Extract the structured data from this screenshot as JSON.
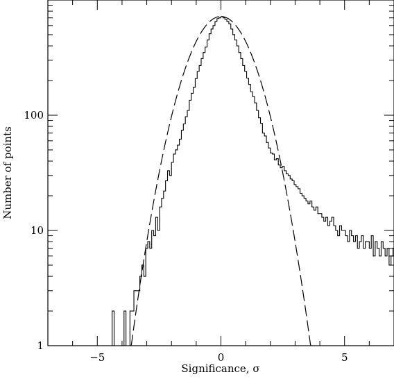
{
  "chart_data": {
    "type": "histogram-log",
    "title": "",
    "xlabel": "Significance, σ",
    "ylabel": "Number of points",
    "xlim": [
      -7,
      7
    ],
    "ylim": [
      1,
      1000
    ],
    "yscale": "log",
    "grid": false,
    "x_ticks": [
      {
        "value": -5,
        "label": "−5"
      },
      {
        "value": 0,
        "label": "0"
      },
      {
        "value": 5,
        "label": "5"
      }
    ],
    "y_ticks": [
      {
        "value": 1,
        "label": "1"
      },
      {
        "value": 10,
        "label": "10"
      },
      {
        "value": 100,
        "label": "100"
      }
    ],
    "series": [
      {
        "style": "histogram-step",
        "color": "#000000",
        "bin_width": 0.08,
        "x": [
          -4.4,
          -4.32,
          -4.24,
          -4.16,
          -4.08,
          -4.0,
          -3.92,
          -3.84,
          -3.76,
          -3.68,
          -3.6,
          -3.52,
          -3.44,
          -3.36,
          -3.28,
          -3.2,
          -3.12,
          -3.04,
          -2.96,
          -2.88,
          -2.8,
          -2.72,
          -2.64,
          -2.56,
          -2.48,
          -2.4,
          -2.32,
          -2.24,
          -2.16,
          -2.08,
          -2.0,
          -1.92,
          -1.84,
          -1.76,
          -1.68,
          -1.6,
          -1.52,
          -1.44,
          -1.36,
          -1.28,
          -1.2,
          -1.12,
          -1.04,
          -0.96,
          -0.88,
          -0.8,
          -0.72,
          -0.64,
          -0.56,
          -0.48,
          -0.4,
          -0.32,
          -0.24,
          -0.16,
          -0.08,
          0.0,
          0.08,
          0.16,
          0.24,
          0.32,
          0.4,
          0.48,
          0.56,
          0.64,
          0.72,
          0.8,
          0.88,
          0.96,
          1.04,
          1.12,
          1.2,
          1.28,
          1.36,
          1.44,
          1.52,
          1.6,
          1.68,
          1.76,
          1.84,
          1.92,
          2.0,
          2.08,
          2.16,
          2.24,
          2.32,
          2.4,
          2.48,
          2.56,
          2.64,
          2.72,
          2.8,
          2.88,
          2.96,
          3.04,
          3.12,
          3.2,
          3.28,
          3.36,
          3.44,
          3.52,
          3.6,
          3.68,
          3.76,
          3.84,
          3.92,
          4.0,
          4.08,
          4.16,
          4.24,
          4.32,
          4.4,
          4.48,
          4.56,
          4.64,
          4.72,
          4.8,
          4.88,
          4.96,
          5.04,
          5.12,
          5.2,
          5.28,
          5.36,
          5.44,
          5.52,
          5.6,
          5.68,
          5.76,
          5.84,
          5.92,
          6.0,
          6.08,
          6.16,
          6.24,
          6.32,
          6.4,
          6.48,
          6.56,
          6.64,
          6.72,
          6.8,
          6.88,
          6.96
        ],
        "values": [
          2,
          1,
          1,
          1,
          1,
          1,
          2,
          1,
          1,
          2,
          2,
          3,
          3,
          3,
          4,
          5,
          4,
          7,
          8,
          7,
          10,
          9,
          13,
          10,
          16,
          19,
          22,
          27,
          33,
          30,
          39,
          46,
          50,
          55,
          62,
          74,
          84,
          97,
          110,
          135,
          155,
          175,
          208,
          240,
          270,
          310,
          350,
          390,
          450,
          510,
          560,
          600,
          650,
          690,
          700,
          720,
          700,
          680,
          650,
          620,
          560,
          500,
          450,
          400,
          350,
          310,
          270,
          240,
          210,
          185,
          160,
          145,
          128,
          110,
          95,
          85,
          70,
          66,
          58,
          52,
          47,
          46,
          41,
          42,
          37,
          35,
          36,
          33,
          31,
          30,
          28,
          27,
          25,
          24,
          23,
          21,
          20,
          19,
          18,
          17,
          18,
          16,
          15,
          16,
          14,
          14,
          13,
          12,
          13,
          11,
          12,
          13,
          11,
          10,
          9,
          11,
          10,
          10,
          9,
          8,
          10,
          9,
          8,
          9,
          7,
          8,
          9,
          7,
          8,
          8,
          7,
          9,
          6,
          8,
          7,
          6,
          8,
          7,
          6,
          7,
          5,
          6,
          7
        ]
      },
      {
        "style": "dashed",
        "color": "#000000",
        "model": "gaussian",
        "amplitude": 720,
        "mean": 0,
        "sigma": 1.0
      }
    ]
  }
}
